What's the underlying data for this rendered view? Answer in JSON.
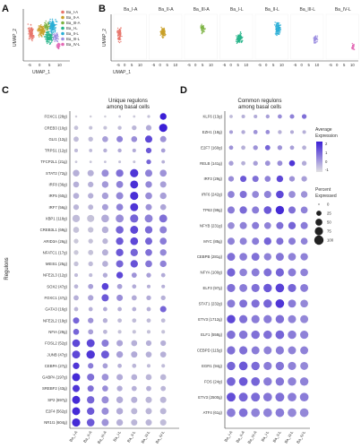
{
  "panels": {
    "A": {
      "label": "A",
      "xlabel": "UMAP_1",
      "ylabel": "UMAP_2",
      "ticks": [
        "-5",
        "0",
        "5",
        "10"
      ],
      "legend": [
        "Ba_I-A",
        "Ba_II-A",
        "Ba_III-A",
        "Ba_I-L",
        "Ba_II-L",
        "Ba_III-L",
        "Ba_IV-L"
      ]
    },
    "B": {
      "label": "B",
      "xlabel": "UMAP_1",
      "ylabel": "UMAP_2",
      "ticks": [
        "-5",
        "0",
        "5",
        "10"
      ],
      "titles": [
        "Ba_I-A",
        "Ba_II-A",
        "Ba_III-A",
        "Ba_I-L",
        "Ba_II-L",
        "Ba_III-L",
        "Ba_IV-L"
      ]
    },
    "C": {
      "label": "C",
      "title_line1": "Unique regulons",
      "title_line2": "among basal cells",
      "yaxis_title": "Regulons"
    },
    "D": {
      "label": "D",
      "title_line1": "Common regulons",
      "title_line2": "among basal cells"
    }
  },
  "colors": {
    "clusters": [
      "#e8756b",
      "#c9a028",
      "#7cb342",
      "#26b48a",
      "#2aaed6",
      "#9c8ee0",
      "#e36ab6"
    ],
    "dot_low": "#d9d9d9",
    "dot_high": "#3b1fd6"
  },
  "legend_expression": {
    "title1": "Average",
    "title2": "Expression",
    "ticks": [
      "2",
      "1",
      "0",
      "-1"
    ]
  },
  "legend_percent": {
    "title1": "Percent",
    "title2": "Expressed",
    "values": [
      "0",
      "25",
      "50",
      "75",
      "100"
    ]
  },
  "chart_data": [
    {
      "type": "dotplot",
      "panel": "C",
      "title": "Unique regulons among basal cells",
      "ylabel": "Regulons",
      "categories": [
        "Ba_I-A",
        "Ba_II-A",
        "Ba_III-A",
        "Ba_I-L",
        "Ba_II-L",
        "Ba_III-L",
        "Ba_IV-L"
      ],
      "rows": [
        {
          "name": "FOXC1 (28g)",
          "exp": [
            -0.8,
            -0.8,
            -0.8,
            -0.7,
            -0.7,
            -0.6,
            2.5
          ],
          "pct": [
            2,
            2,
            2,
            3,
            3,
            5,
            45
          ]
        },
        {
          "name": "CREB3 (10g)",
          "exp": [
            -0.6,
            -0.6,
            -0.6,
            -0.5,
            -0.4,
            -0.2,
            2.2
          ],
          "pct": [
            15,
            10,
            10,
            12,
            20,
            30,
            75
          ]
        },
        {
          "name": "GLI1 (12g)",
          "exp": [
            -0.5,
            -0.5,
            0.0,
            0.5,
            0.3,
            1.5,
            0.2
          ],
          "pct": [
            25,
            20,
            35,
            40,
            35,
            55,
            40
          ]
        },
        {
          "name": "TRPS1 (12g)",
          "exp": [
            -0.5,
            -0.5,
            -0.3,
            -0.2,
            -0.2,
            1.2,
            0.0
          ],
          "pct": [
            10,
            8,
            12,
            12,
            10,
            30,
            15
          ]
        },
        {
          "name": "TFCP2L1 (21g)",
          "exp": [
            -0.7,
            -0.7,
            -0.6,
            -0.6,
            -0.6,
            1.0,
            -0.3
          ],
          "pct": [
            3,
            3,
            3,
            4,
            4,
            20,
            8
          ]
        },
        {
          "name": "STAT2 (72g)",
          "exp": [
            -0.3,
            -0.3,
            0.3,
            0.8,
            1.8,
            0.5,
            0.2
          ],
          "pct": [
            45,
            40,
            55,
            60,
            75,
            55,
            50
          ]
        },
        {
          "name": "IRF8 (36g)",
          "exp": [
            -0.3,
            -0.3,
            0.1,
            0.5,
            1.9,
            0.4,
            0.0
          ],
          "pct": [
            35,
            30,
            45,
            50,
            70,
            45,
            40
          ]
        },
        {
          "name": "IRF5 (60g)",
          "exp": [
            -0.3,
            -0.3,
            0.0,
            0.4,
            1.9,
            0.3,
            0.0
          ],
          "pct": [
            35,
            30,
            45,
            55,
            75,
            50,
            45
          ]
        },
        {
          "name": "IRF7 (56g)",
          "exp": [
            -0.4,
            -0.4,
            0.0,
            0.5,
            1.8,
            0.2,
            -0.1
          ],
          "pct": [
            30,
            25,
            40,
            50,
            70,
            40,
            35
          ]
        },
        {
          "name": "XBP1 (118g)",
          "exp": [
            -0.5,
            -0.6,
            -0.2,
            0.3,
            1.0,
            0.5,
            0.8
          ],
          "pct": [
            60,
            55,
            65,
            70,
            75,
            70,
            70
          ]
        },
        {
          "name": "CREB3L1 (69g)",
          "exp": [
            -0.6,
            -0.6,
            -0.3,
            1.0,
            1.5,
            0.9,
            0.5
          ],
          "pct": [
            35,
            30,
            45,
            65,
            70,
            60,
            55
          ]
        },
        {
          "name": "ARID3A (26g)",
          "exp": [
            -0.7,
            -0.6,
            -0.4,
            1.2,
            1.5,
            1.0,
            0.6
          ],
          "pct": [
            20,
            20,
            30,
            60,
            65,
            55,
            50
          ]
        },
        {
          "name": "NFATC1 (17g)",
          "exp": [
            -0.7,
            -0.6,
            -0.3,
            1.2,
            1.0,
            0.8,
            0.4
          ],
          "pct": [
            20,
            25,
            40,
            60,
            60,
            50,
            45
          ]
        },
        {
          "name": "MEIS1 (25g)",
          "exp": [
            -0.6,
            -0.5,
            -0.3,
            1.0,
            1.3,
            0.7,
            0.5
          ],
          "pct": [
            20,
            20,
            35,
            55,
            60,
            50,
            45
          ]
        },
        {
          "name": "NFE2L3 (12g)",
          "exp": [
            -0.5,
            -0.5,
            -0.2,
            1.5,
            0.2,
            0.0,
            -0.2
          ],
          "pct": [
            10,
            10,
            20,
            45,
            25,
            20,
            15
          ]
        },
        {
          "name": "SOX2 (47g)",
          "exp": [
            -0.4,
            0.0,
            1.6,
            0.0,
            -0.2,
            -0.3,
            -0.3
          ],
          "pct": [
            15,
            25,
            50,
            25,
            15,
            10,
            10
          ]
        },
        {
          "name": "FOXC1 (47g)",
          "exp": [
            -0.3,
            -0.1,
            1.2,
            0.3,
            -0.2,
            -0.2,
            -0.3
          ],
          "pct": [
            25,
            30,
            55,
            40,
            25,
            20,
            20
          ]
        },
        {
          "name": "GATA3 (16g)",
          "exp": [
            -0.4,
            -0.3,
            -0.2,
            -0.3,
            -0.3,
            -0.3,
            1.0
          ],
          "pct": [
            15,
            15,
            15,
            15,
            15,
            15,
            40
          ]
        },
        {
          "name": "NFE2L2 (19g)",
          "exp": [
            1.0,
            0.2,
            -0.3,
            -0.5,
            -0.5,
            -0.5,
            -0.5
          ],
          "pct": [
            40,
            30,
            20,
            15,
            15,
            15,
            15
          ]
        },
        {
          "name": "NFIA (29g)",
          "exp": [
            1.0,
            0.0,
            -0.4,
            -0.6,
            -0.6,
            -0.6,
            -0.6
          ],
          "pct": [
            35,
            25,
            15,
            10,
            10,
            10,
            10
          ]
        },
        {
          "name": "FOSL2 (52g)",
          "exp": [
            1.5,
            1.5,
            0.6,
            -0.1,
            -0.3,
            -0.3,
            -0.3
          ],
          "pct": [
            65,
            70,
            55,
            40,
            35,
            30,
            30
          ]
        },
        {
          "name": "JUNB (47g)",
          "exp": [
            1.5,
            1.8,
            1.2,
            0.0,
            -0.2,
            -0.3,
            -0.3
          ],
          "pct": [
            70,
            80,
            70,
            45,
            40,
            35,
            35
          ]
        },
        {
          "name": "CEBPA (27g)",
          "exp": [
            1.8,
            0.6,
            0.0,
            -0.3,
            -0.4,
            -0.5,
            -0.5
          ],
          "pct": [
            45,
            30,
            25,
            15,
            15,
            10,
            10
          ]
        },
        {
          "name": "GABPA (197g)",
          "exp": [
            2.0,
            0.8,
            0.2,
            -0.2,
            -0.3,
            -0.4,
            -0.4
          ],
          "pct": [
            70,
            55,
            50,
            40,
            35,
            35,
            35
          ]
        },
        {
          "name": "SREBF2 (43g)",
          "exp": [
            1.8,
            0.8,
            0.3,
            -0.2,
            -0.3,
            -0.3,
            -0.4
          ],
          "pct": [
            55,
            40,
            35,
            30,
            25,
            25,
            25
          ]
        },
        {
          "name": "SP2 (697g)",
          "exp": [
            2.0,
            1.0,
            0.3,
            -0.2,
            -0.3,
            -0.4,
            -0.4
          ],
          "pct": [
            70,
            60,
            55,
            45,
            40,
            40,
            40
          ]
        },
        {
          "name": "E2F4 (562g)",
          "exp": [
            2.0,
            1.2,
            0.3,
            -0.2,
            -0.4,
            -0.4,
            -0.4
          ],
          "pct": [
            70,
            60,
            55,
            45,
            40,
            40,
            40
          ]
        },
        {
          "name": "NR1I1 (604g)",
          "exp": [
            2.0,
            1.2,
            0.2,
            -0.3,
            -0.4,
            -0.4,
            -0.5
          ],
          "pct": [
            75,
            65,
            55,
            45,
            40,
            40,
            40
          ]
        }
      ]
    },
    {
      "type": "dotplot",
      "panel": "D",
      "title": "Common regulons among basal cells",
      "categories": [
        "Ba_I-A",
        "Ba_II-A",
        "Ba_III-A",
        "Ba_I-L",
        "Ba_II-L",
        "Ba_III-L",
        "Ba_IV-L"
      ],
      "rows": [
        {
          "name": "KLF6 (13g)",
          "exp": [
            -0.5,
            -0.3,
            -0.2,
            0.0,
            0.3,
            0.5,
            0.8
          ],
          "pct": [
            8,
            10,
            10,
            12,
            15,
            18,
            20
          ]
        },
        {
          "name": "EZH1 (18g)",
          "exp": [
            0.0,
            -0.2,
            0.2,
            0.3,
            -0.3,
            -0.2,
            -0.3
          ],
          "pct": [
            10,
            12,
            15,
            15,
            12,
            10,
            10
          ]
        },
        {
          "name": "E2F7 (160g)",
          "exp": [
            0.2,
            -0.3,
            0.2,
            1.0,
            0.2,
            0.0,
            -0.3
          ],
          "pct": [
            15,
            15,
            20,
            25,
            20,
            15,
            15
          ]
        },
        {
          "name": "RELB (141g)",
          "exp": [
            0.0,
            -0.3,
            0.0,
            0.2,
            0.3,
            1.8,
            -0.2
          ],
          "pct": [
            20,
            15,
            20,
            25,
            25,
            35,
            20
          ]
        },
        {
          "name": "IRF3 (29g)",
          "exp": [
            0.3,
            1.2,
            0.8,
            0.5,
            1.5,
            0.2,
            0.0
          ],
          "pct": [
            30,
            40,
            40,
            35,
            45,
            30,
            30
          ]
        },
        {
          "name": "IRF6 (242g)",
          "exp": [
            0.5,
            0.8,
            0.4,
            0.5,
            1.5,
            0.3,
            0.2
          ],
          "pct": [
            50,
            55,
            50,
            55,
            65,
            50,
            45
          ]
        },
        {
          "name": "TP63 (99g)",
          "exp": [
            0.6,
            0.9,
            0.6,
            1.2,
            2.0,
            0.8,
            0.5
          ],
          "pct": [
            55,
            60,
            55,
            65,
            80,
            55,
            50
          ]
        },
        {
          "name": "NFYB (231g)",
          "exp": [
            0.3,
            0.5,
            0.6,
            0.5,
            0.8,
            1.0,
            0.6
          ],
          "pct": [
            50,
            55,
            55,
            50,
            55,
            60,
            55
          ]
        },
        {
          "name": "MYC (85g)",
          "exp": [
            0.5,
            0.5,
            0.6,
            1.0,
            0.8,
            0.6,
            0.5
          ],
          "pct": [
            55,
            55,
            55,
            60,
            55,
            55,
            50
          ]
        },
        {
          "name": "CEBPB (281g)",
          "exp": [
            0.8,
            0.6,
            0.8,
            0.5,
            0.7,
            0.5,
            0.5
          ],
          "pct": [
            70,
            65,
            70,
            60,
            70,
            65,
            60
          ]
        },
        {
          "name": "NFYA (100g)",
          "exp": [
            1.0,
            0.5,
            0.6,
            0.8,
            1.0,
            0.6,
            0.5
          ],
          "pct": [
            75,
            65,
            70,
            70,
            75,
            70,
            65
          ]
        },
        {
          "name": "ELF3 (97g)",
          "exp": [
            0.8,
            0.6,
            0.8,
            1.2,
            1.6,
            1.0,
            0.6
          ],
          "pct": [
            75,
            70,
            75,
            80,
            85,
            75,
            70
          ]
        },
        {
          "name": "STAT1 (232g)",
          "exp": [
            0.6,
            0.8,
            0.8,
            1.0,
            1.8,
            0.6,
            0.4
          ],
          "pct": [
            70,
            70,
            75,
            80,
            85,
            70,
            65
          ]
        },
        {
          "name": "ETV3 (1712g)",
          "exp": [
            1.5,
            0.8,
            0.6,
            0.6,
            0.8,
            0.5,
            0.4
          ],
          "pct": [
            80,
            75,
            75,
            75,
            80,
            70,
            70
          ]
        },
        {
          "name": "ELF1 (558g)",
          "exp": [
            0.8,
            0.7,
            0.8,
            0.8,
            1.0,
            0.6,
            0.5
          ],
          "pct": [
            80,
            80,
            80,
            80,
            85,
            80,
            75
          ]
        },
        {
          "name": "CEBPD (115g)",
          "exp": [
            0.8,
            0.8,
            0.6,
            0.5,
            0.6,
            0.5,
            0.5
          ],
          "pct": [
            75,
            75,
            70,
            70,
            75,
            70,
            70
          ]
        },
        {
          "name": "EGR1 (94g)",
          "exp": [
            1.0,
            1.2,
            0.9,
            0.6,
            0.7,
            0.5,
            0.4
          ],
          "pct": [
            80,
            85,
            80,
            75,
            80,
            75,
            70
          ]
        },
        {
          "name": "FOS (24g)",
          "exp": [
            1.0,
            1.2,
            1.0,
            0.6,
            0.7,
            0.5,
            0.5
          ],
          "pct": [
            85,
            85,
            85,
            80,
            80,
            80,
            80
          ]
        },
        {
          "name": "ETV3 (2500g)",
          "exp": [
            1.4,
            1.0,
            0.9,
            0.7,
            0.8,
            0.6,
            0.6
          ],
          "pct": [
            90,
            90,
            90,
            85,
            90,
            85,
            85
          ]
        },
        {
          "name": "ATF4 (61g)",
          "exp": [
            0.6,
            0.8,
            0.5,
            0.5,
            0.6,
            0.4,
            0.4
          ],
          "pct": [
            85,
            85,
            85,
            85,
            85,
            85,
            85
          ]
        }
      ]
    }
  ]
}
